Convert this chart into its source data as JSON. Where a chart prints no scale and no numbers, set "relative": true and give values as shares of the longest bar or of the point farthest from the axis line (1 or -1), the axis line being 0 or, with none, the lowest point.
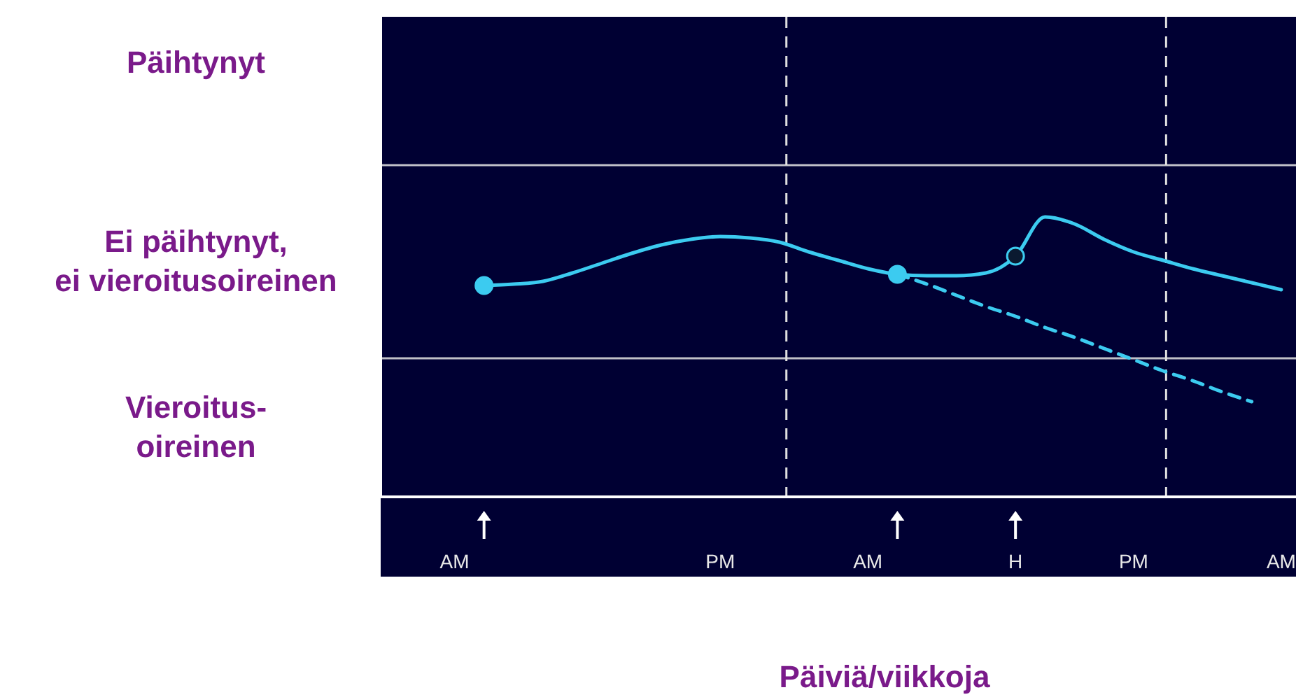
{
  "chart_data": {
    "type": "line",
    "relative": true,
    "xlabel": "Päiviä/viikkoja",
    "categories": [
      null,
      null,
      "AM",
      null,
      null,
      null,
      null,
      null,
      null,
      null,
      null,
      "PM",
      null,
      null,
      null,
      null,
      "AM",
      null,
      null,
      null,
      null,
      "H",
      null,
      null,
      null,
      "PM",
      null,
      null,
      null,
      null,
      "AM"
    ],
    "annotations": [
      "Päihtynyt",
      "Ei päihtynyt,\nei vieroitusoireinen",
      "Vieroitus-\noireinen"
    ],
    "marker": "none",
    "line_style": "solid",
    "ref_lines": [
      {
        "axis": "y",
        "value": 0.495,
        "color": "#c0c0c8",
        "line_style": "solid"
      },
      {
        "axis": "y",
        "value": 1.185,
        "color": "#c0c0c8",
        "line_style": "solid"
      }
    ],
    "series": [
      {
        "color": "#3ccbf0",
        "values": [
          null,
          null,
          null,
          0.755,
          0.76,
          0.77,
          0.8,
          0.835,
          0.87,
          0.9,
          0.92,
          0.93,
          0.925,
          0.91,
          0.875,
          0.845,
          0.815,
          0.795,
          0.79,
          0.79,
          0.8,
          0.86,
          1.0,
          0.975,
          0.92,
          0.875,
          0.845,
          0.815,
          0.79,
          0.765,
          0.74
        ]
      },
      {
        "color": "#3ccbf0",
        "line_style": "dashed",
        "values": [
          null,
          null,
          null,
          null,
          null,
          null,
          null,
          null,
          null,
          null,
          null,
          null,
          null,
          null,
          null,
          null,
          null,
          0.795,
          0.76,
          0.72,
          0.68,
          0.645,
          0.605,
          0.57,
          0.53,
          0.49,
          0.45,
          0.415,
          0.375,
          0.34,
          null
        ]
      },
      {
        "type": "scatter",
        "color": "#3ccbf0",
        "marker": "circle",
        "values": [
          null,
          null,
          null,
          0.755,
          null,
          null,
          null,
          null,
          null,
          null,
          null,
          null,
          null,
          null,
          null,
          null,
          null,
          0.795,
          null,
          null,
          null,
          null,
          null,
          null,
          null,
          null,
          null,
          null,
          null,
          null,
          null
        ]
      },
      {
        "type": "scatter",
        "color": "#0a1a30",
        "marker": "circle",
        "values": [
          null,
          null,
          null,
          null,
          null,
          null,
          null,
          null,
          null,
          null,
          null,
          null,
          null,
          null,
          null,
          null,
          null,
          null,
          null,
          null,
          null,
          0.86,
          null,
          null,
          null,
          null,
          null,
          null,
          null,
          null,
          null
        ]
      }
    ]
  }
}
